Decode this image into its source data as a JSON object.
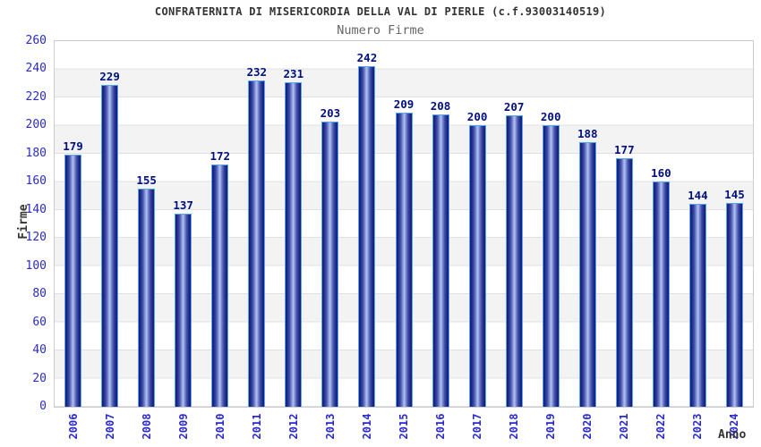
{
  "chart_data": {
    "type": "bar",
    "title": "CONFRATERNITA DI MISERICORDIA DELLA VAL DI PIERLE (c.f.93003140519)",
    "subtitle": "Numero Firme",
    "xlabel": "Anno",
    "ylabel": "Firme",
    "categories": [
      "2006",
      "2007",
      "2008",
      "2009",
      "2010",
      "2011",
      "2012",
      "2013",
      "2014",
      "2015",
      "2016",
      "2017",
      "2018",
      "2019",
      "2020",
      "2021",
      "2022",
      "2023",
      "2024"
    ],
    "values": [
      179,
      229,
      155,
      137,
      172,
      232,
      231,
      203,
      242,
      209,
      208,
      200,
      207,
      200,
      188,
      177,
      160,
      144,
      145
    ],
    "ylim": [
      0,
      260
    ],
    "yticks": [
      0,
      20,
      40,
      60,
      80,
      100,
      120,
      140,
      160,
      180,
      200,
      220,
      240,
      260
    ],
    "grid": "alternating horizontal bands every 20 units",
    "legend": "none",
    "colors": {
      "bar_dark": "#131c74",
      "bar_light": "#b9c4ef",
      "bar_border": "#58a5ef",
      "tick_label": "#2a2acd",
      "value_label": "#001080",
      "title": "#333333",
      "subtitle": "#666666",
      "band_gray": "#f3f3f3",
      "grid_line": "#e0e0e0",
      "plot_border": "#cccccc"
    }
  }
}
